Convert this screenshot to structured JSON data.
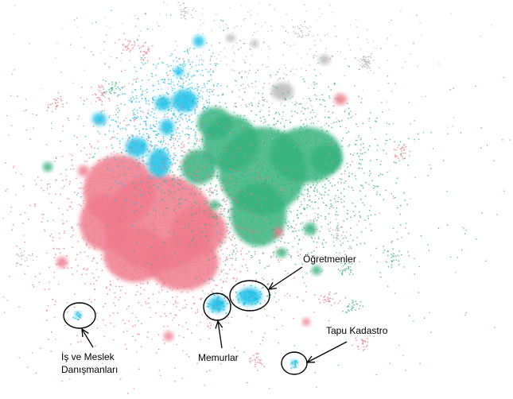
{
  "annotations": {
    "ogretmenler": "Öğretmenler",
    "tapu_kadastro": "Tapu Kadastro",
    "memurlar": "Memurlar",
    "is_ve_meslek_line1": "İş ve Meslek",
    "is_ve_meslek_line2": "Danışmanları"
  },
  "colors": {
    "pink": "#ef7b8c",
    "green": "#37b37e",
    "cyan": "#18bfe8",
    "gray": "#b8b8b8",
    "annotation_stroke": "#000000"
  }
}
